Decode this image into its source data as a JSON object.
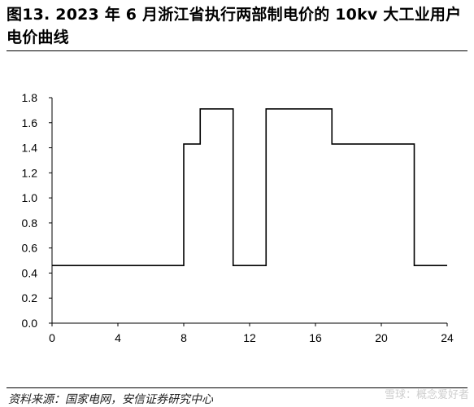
{
  "title": "图13. 2023 年 6 月浙江省执行两部制电价的 10kv 大工业用户电价曲线",
  "source": "资料来源：国家电网，安信证券研究中心",
  "watermark": "雪球：概念爱好者",
  "chart_data": {
    "type": "line",
    "step": true,
    "title": "",
    "xlabel": "",
    "ylabel": "",
    "xlim": [
      0,
      24
    ],
    "ylim": [
      0.0,
      1.8
    ],
    "xticks": [
      0,
      4,
      8,
      12,
      16,
      20,
      24
    ],
    "yticks": [
      "0.0",
      "0.2",
      "0.4",
      "0.6",
      "0.8",
      "1.0",
      "1.2",
      "1.4",
      "1.6",
      "1.8"
    ],
    "grid": false,
    "series": [
      {
        "color": "#000000",
        "x": [
          0,
          8,
          8,
          9,
          9,
          11,
          11,
          13,
          13,
          17,
          17,
          22,
          22,
          24
        ],
        "y": [
          0.46,
          0.46,
          1.43,
          1.43,
          1.71,
          1.71,
          0.46,
          0.46,
          1.71,
          1.71,
          1.43,
          1.43,
          0.46,
          0.46
        ]
      }
    ]
  }
}
